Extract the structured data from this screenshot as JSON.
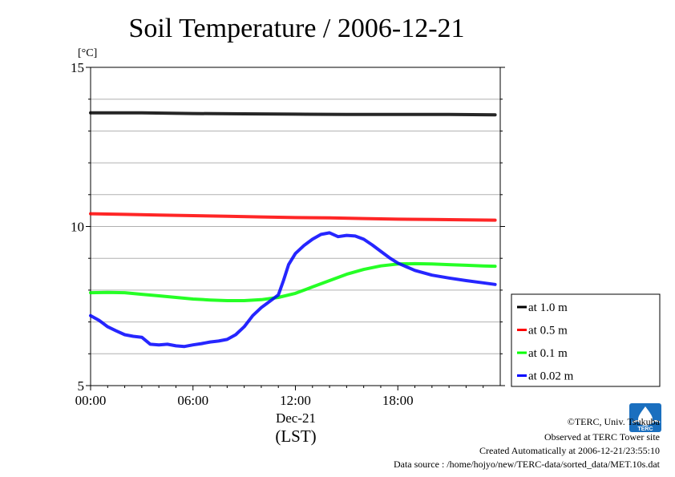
{
  "chart_data": {
    "type": "line",
    "title": "Soil Temperature / 2006-12-21",
    "ylabel": "[°C]",
    "xlabel_date": "Dec-21",
    "xlabel_tz": "(LST)",
    "xlim": [
      0,
      24
    ],
    "ylim": [
      5,
      15
    ],
    "x_ticks": [
      {
        "value": 0,
        "label": "00:00"
      },
      {
        "value": 6,
        "label": "06:00"
      },
      {
        "value": 12,
        "label": "12:00"
      },
      {
        "value": 18,
        "label": "18:00"
      }
    ],
    "y_ticks": [
      {
        "value": 5,
        "label": "5"
      },
      {
        "value": 10,
        "label": "10"
      },
      {
        "value": 15,
        "label": "15"
      }
    ],
    "y_grid": [
      6,
      7,
      8,
      9,
      11,
      12,
      13,
      14
    ],
    "grid": true,
    "legend_position": "right",
    "series": [
      {
        "name": "at 1.0 m",
        "color": "#000000",
        "x": [
          0,
          3,
          6,
          9,
          12,
          15,
          18,
          21,
          23.7
        ],
        "y": [
          13.57,
          13.57,
          13.55,
          13.54,
          13.53,
          13.52,
          13.52,
          13.52,
          13.51
        ]
      },
      {
        "name": "at 0.5 m",
        "color": "#ff0000",
        "x": [
          0,
          2,
          4,
          6,
          8,
          10,
          12,
          14,
          16,
          18,
          20,
          22,
          23.7
        ],
        "y": [
          10.4,
          10.38,
          10.36,
          10.34,
          10.32,
          10.3,
          10.28,
          10.27,
          10.25,
          10.23,
          10.22,
          10.21,
          10.2
        ]
      },
      {
        "name": "at 0.1 m",
        "color": "#00ff00",
        "x": [
          0,
          1,
          2,
          3,
          4,
          5,
          6,
          7,
          8,
          9,
          10,
          11,
          12,
          13,
          14,
          15,
          16,
          17,
          18,
          19,
          20,
          21,
          22,
          23,
          23.7
        ],
        "y": [
          7.92,
          7.93,
          7.92,
          7.87,
          7.82,
          7.77,
          7.72,
          7.69,
          7.67,
          7.67,
          7.7,
          7.77,
          7.9,
          8.1,
          8.3,
          8.5,
          8.65,
          8.76,
          8.82,
          8.83,
          8.82,
          8.8,
          8.78,
          8.76,
          8.75
        ]
      },
      {
        "name": "at 0.02 m",
        "color": "#0000ff",
        "x": [
          0,
          0.5,
          1,
          1.5,
          2,
          2.5,
          3,
          3.5,
          4,
          4.5,
          5,
          5.5,
          6,
          6.5,
          7,
          7.5,
          8,
          8.5,
          9,
          9.5,
          10,
          10.5,
          11,
          11.3,
          11.6,
          12,
          12.5,
          13,
          13.5,
          14,
          14.5,
          15,
          15.5,
          16,
          16.5,
          17,
          17.5,
          18,
          19,
          20,
          21,
          22,
          23,
          23.7
        ],
        "y": [
          7.2,
          7.05,
          6.85,
          6.72,
          6.6,
          6.55,
          6.52,
          6.3,
          6.28,
          6.3,
          6.25,
          6.23,
          6.28,
          6.32,
          6.37,
          6.4,
          6.45,
          6.6,
          6.85,
          7.2,
          7.45,
          7.65,
          7.85,
          8.3,
          8.8,
          9.15,
          9.4,
          9.6,
          9.75,
          9.8,
          9.68,
          9.72,
          9.7,
          9.6,
          9.42,
          9.22,
          9.02,
          8.85,
          8.62,
          8.47,
          8.38,
          8.3,
          8.23,
          8.18
        ]
      }
    ]
  },
  "footer": {
    "copyright": "©TERC, Univ. Tsukuba",
    "observed": "Observed at TERC Tower site",
    "created": "Created Automatically at 2006-12-21/23:55:10",
    "source": "Data source : /home/hojyo/new/TERC-data/sorted_data/MET.10s.dat"
  },
  "logo": {
    "text": "TERC",
    "color": "#1a6fbf"
  }
}
